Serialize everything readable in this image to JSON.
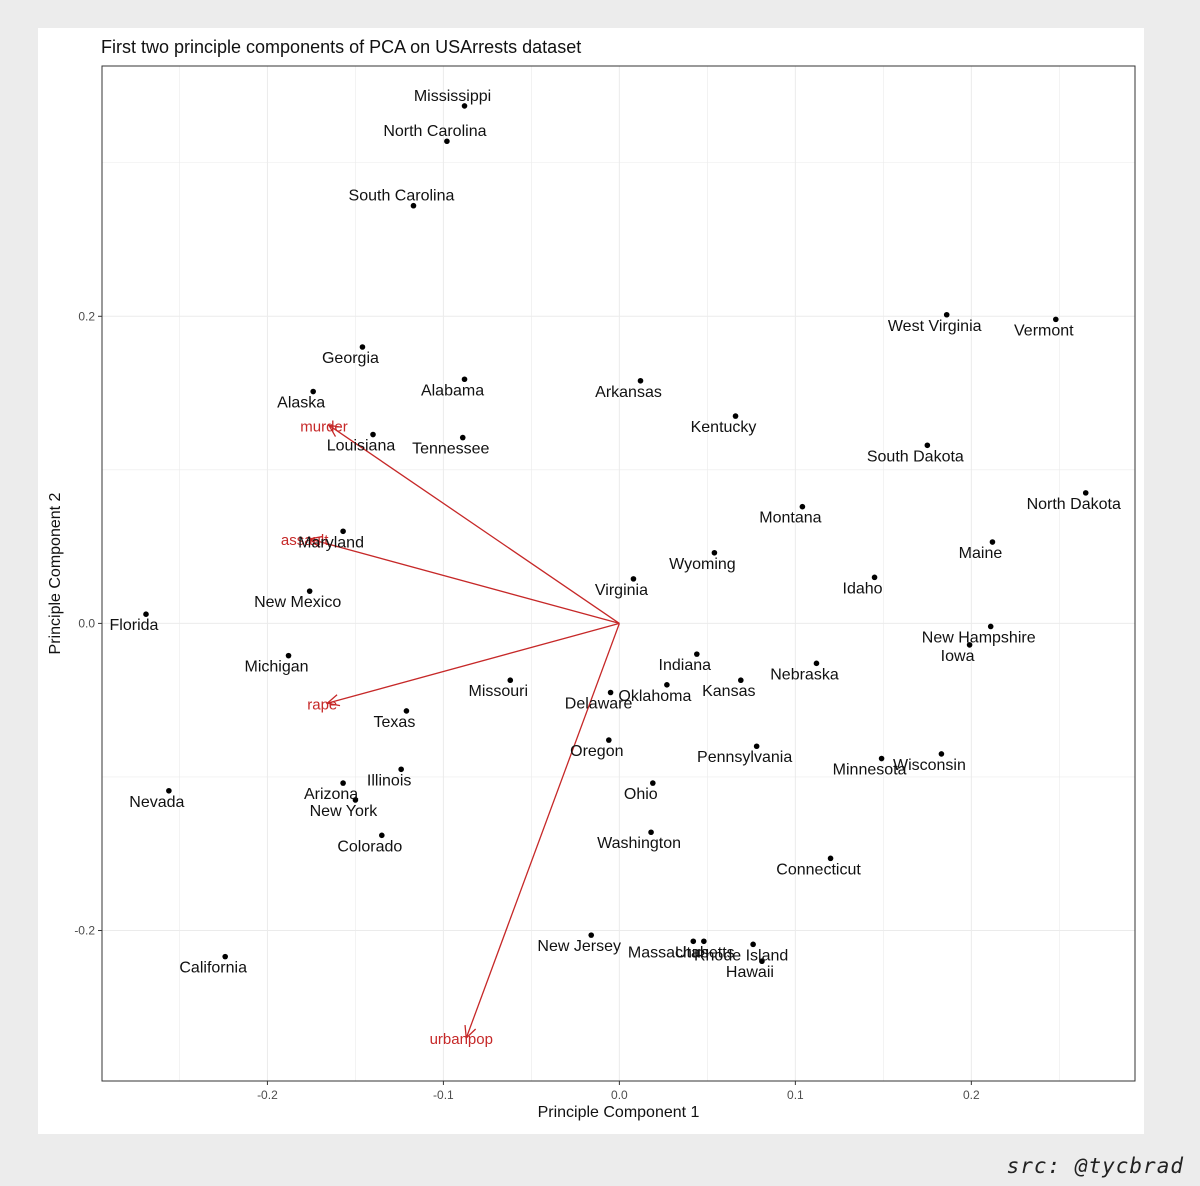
{
  "credit": "src: @tycbrad",
  "colors": {
    "points": "#000000",
    "arrows": "#c62828",
    "grid": "#ebebeb",
    "border": "#333333"
  },
  "chart_data": {
    "type": "scatter",
    "title": "First two principle components of PCA on USArrests dataset",
    "xlabel": "Principle Component 1",
    "ylabel": "Principle Component 2",
    "xlim": [
      -0.294,
      0.293
    ],
    "ylim": [
      -0.298,
      0.363
    ],
    "xticks": [
      -0.2,
      -0.1,
      0.0,
      0.1,
      0.2
    ],
    "xtick_labels": [
      "-0.2",
      "-0.1",
      "0.0",
      "0.1",
      "0.2"
    ],
    "yticks": [
      -0.2,
      0.0,
      0.2
    ],
    "ytick_labels": [
      "-0.2",
      "0.0",
      "0.2"
    ],
    "grid": true,
    "points": [
      {
        "label": "Alabama",
        "x": -0.088,
        "y": 0.159
      },
      {
        "label": "Alaska",
        "x": -0.174,
        "y": 0.151
      },
      {
        "label": "Arizona",
        "x": -0.157,
        "y": -0.104
      },
      {
        "label": "Arkansas",
        "x": 0.012,
        "y": 0.158
      },
      {
        "label": "California",
        "x": -0.224,
        "y": -0.217
      },
      {
        "label": "Colorado",
        "x": -0.135,
        "y": -0.138
      },
      {
        "label": "Connecticut",
        "x": 0.12,
        "y": -0.153
      },
      {
        "label": "Delaware",
        "x": -0.005,
        "y": -0.045
      },
      {
        "label": "Florida",
        "x": -0.269,
        "y": 0.006
      },
      {
        "label": "Georgia",
        "x": -0.146,
        "y": 0.18
      },
      {
        "label": "Hawaii",
        "x": 0.081,
        "y": -0.22
      },
      {
        "label": "Idaho",
        "x": 0.145,
        "y": 0.03
      },
      {
        "label": "Illinois",
        "x": -0.124,
        "y": -0.095
      },
      {
        "label": "Indiana",
        "x": 0.044,
        "y": -0.02
      },
      {
        "label": "Iowa",
        "x": 0.199,
        "y": -0.014
      },
      {
        "label": "Kansas",
        "x": 0.069,
        "y": -0.037
      },
      {
        "label": "Kentucky",
        "x": 0.066,
        "y": 0.135
      },
      {
        "label": "Louisiana",
        "x": -0.14,
        "y": 0.123
      },
      {
        "label": "Maine",
        "x": 0.212,
        "y": 0.053
      },
      {
        "label": "Maryland",
        "x": -0.157,
        "y": 0.06
      },
      {
        "label": "Massachusetts",
        "x": 0.042,
        "y": -0.207
      },
      {
        "label": "Michigan",
        "x": -0.188,
        "y": -0.021
      },
      {
        "label": "Minnesota",
        "x": 0.149,
        "y": -0.088
      },
      {
        "label": "Mississippi",
        "x": -0.088,
        "y": 0.337
      },
      {
        "label": "Missouri",
        "x": -0.062,
        "y": -0.037
      },
      {
        "label": "Montana",
        "x": 0.104,
        "y": 0.076
      },
      {
        "label": "Nebraska",
        "x": 0.112,
        "y": -0.026
      },
      {
        "label": "Nevada",
        "x": -0.256,
        "y": -0.109
      },
      {
        "label": "New Hampshire",
        "x": 0.211,
        "y": -0.002
      },
      {
        "label": "New Jersey",
        "x": -0.016,
        "y": -0.203
      },
      {
        "label": "New Mexico",
        "x": -0.176,
        "y": 0.021
      },
      {
        "label": "New York",
        "x": -0.15,
        "y": -0.115
      },
      {
        "label": "North Carolina",
        "x": -0.098,
        "y": 0.314
      },
      {
        "label": "North Dakota",
        "x": 0.265,
        "y": 0.085
      },
      {
        "label": "Ohio",
        "x": 0.019,
        "y": -0.104
      },
      {
        "label": "Oklahoma",
        "x": 0.027,
        "y": -0.04
      },
      {
        "label": "Oregon",
        "x": -0.006,
        "y": -0.076
      },
      {
        "label": "Pennsylvania",
        "x": 0.078,
        "y": -0.08
      },
      {
        "label": "Rhode Island",
        "x": 0.076,
        "y": -0.209
      },
      {
        "label": "South Carolina",
        "x": -0.117,
        "y": 0.272
      },
      {
        "label": "South Dakota",
        "x": 0.175,
        "y": 0.116
      },
      {
        "label": "Tennessee",
        "x": -0.089,
        "y": 0.121
      },
      {
        "label": "Texas",
        "x": -0.121,
        "y": -0.057
      },
      {
        "label": "Utah",
        "x": 0.048,
        "y": -0.207
      },
      {
        "label": "Vermont",
        "x": 0.248,
        "y": 0.198
      },
      {
        "label": "Virginia",
        "x": 0.008,
        "y": 0.029
      },
      {
        "label": "Washington",
        "x": 0.018,
        "y": -0.136
      },
      {
        "label": "West Virginia",
        "x": 0.186,
        "y": 0.201
      },
      {
        "label": "Wisconsin",
        "x": 0.183,
        "y": -0.085
      },
      {
        "label": "Wyoming",
        "x": 0.054,
        "y": 0.046
      }
    ],
    "loadings": [
      {
        "label": "murder",
        "x": -0.165,
        "y": 0.129
      },
      {
        "label": "assault",
        "x": -0.176,
        "y": 0.055
      },
      {
        "label": "rape",
        "x": -0.166,
        "y": -0.052
      },
      {
        "label": "urbanpop",
        "x": -0.087,
        "y": -0.27
      }
    ]
  }
}
